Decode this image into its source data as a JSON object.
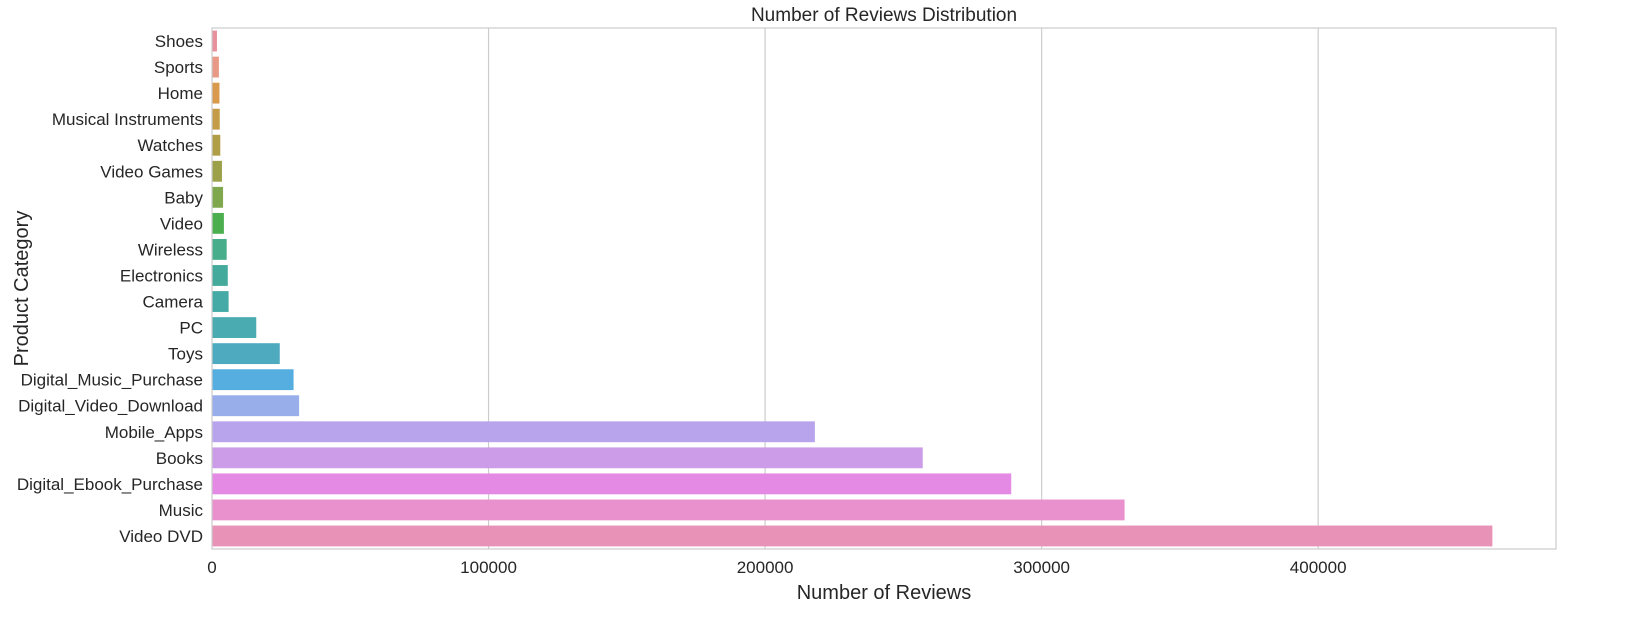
{
  "chart_data": {
    "type": "bar",
    "orientation": "horizontal",
    "title": "Number of Reviews Distribution",
    "xlabel": "Number of Reviews",
    "ylabel": "Product Category",
    "xlim": [
      0,
      486000
    ],
    "xticks": [
      0,
      100000,
      200000,
      300000,
      400000
    ],
    "xtick_labels": [
      "0",
      "100000",
      "200000",
      "300000",
      "400000"
    ],
    "grid": true,
    "categories": [
      "Shoes",
      "Sports",
      "Home",
      "Musical Instruments",
      "Watches",
      "Video Games",
      "Baby",
      "Video",
      "Wireless",
      "Electronics",
      "Camera",
      "PC",
      "Toys",
      "Digital_Music_Purchase",
      "Digital_Video_Download",
      "Mobile_Apps",
      "Books",
      "Digital_Ebook_Purchase",
      "Music",
      "Video DVD"
    ],
    "values": [
      1800,
      2500,
      2700,
      2800,
      3000,
      3600,
      4000,
      4300,
      5300,
      5700,
      6000,
      16000,
      24500,
      29500,
      31500,
      218000,
      257000,
      289000,
      330000,
      463000
    ],
    "colors": [
      "#e8919d",
      "#e89a87",
      "#d99a4e",
      "#c49c48",
      "#b09e47",
      "#9ba049",
      "#7fa84e",
      "#4caf4f",
      "#48ad8a",
      "#44ab9c",
      "#45a9a6",
      "#4aabb1",
      "#4daabf",
      "#56addf",
      "#98aeea",
      "#b8a4ec",
      "#cc9ce8",
      "#e48ae4",
      "#e891cc",
      "#e992b7"
    ]
  }
}
